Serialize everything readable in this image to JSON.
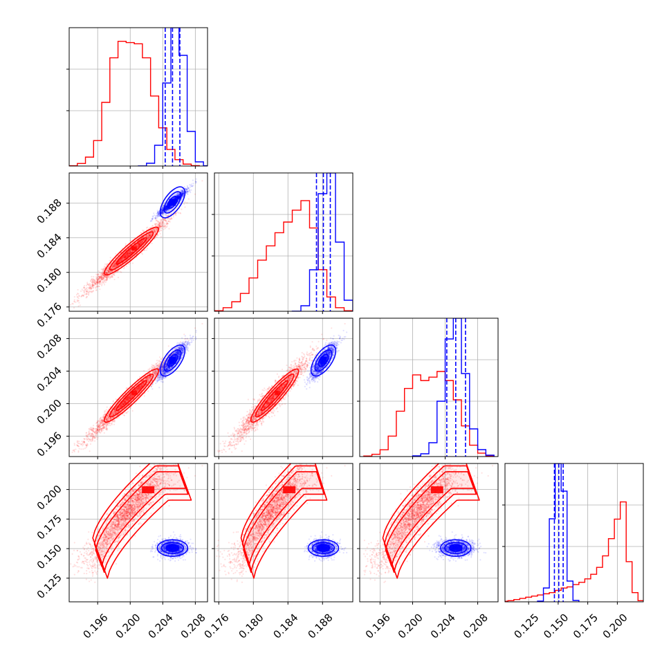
{
  "chart_data": {
    "type": "corner",
    "grid": true,
    "colors": {
      "red": "#ff0000",
      "blue": "#0000ff",
      "grid": "#b0b0b0",
      "axes": "#000000"
    },
    "parameters": [
      {
        "range": [
          0.1925,
          0.2095
        ],
        "ticks": [
          0.196,
          0.2,
          0.204,
          0.208
        ],
        "tick_labels": [
          "0.196",
          "0.200",
          "0.204",
          "0.208"
        ],
        "blue_mean": 0.2052,
        "blue_sigma": 0.0009,
        "dashed_quantiles": [
          0.2043,
          0.2052,
          0.2061
        ]
      },
      {
        "range": [
          0.1755,
          0.1915
        ],
        "ticks": [
          0.176,
          0.18,
          0.184,
          0.188
        ],
        "tick_labels": [
          "0.176",
          "0.180",
          "0.184",
          "0.188"
        ],
        "blue_mean": 0.1881,
        "blue_sigma": 0.00075,
        "dashed_quantiles": [
          0.1873,
          0.1881,
          0.1889
        ]
      },
      {
        "range": [
          0.1935,
          0.2105
        ],
        "ticks": [
          0.196,
          0.2,
          0.204,
          0.208
        ],
        "tick_labels": [
          "0.196",
          "0.200",
          "0.204",
          "0.208"
        ],
        "blue_mean": 0.2053,
        "blue_sigma": 0.0011,
        "dashed_quantiles": [
          0.2042,
          0.2053,
          0.2065
        ]
      },
      {
        "range": [
          0.105,
          0.222
        ],
        "ticks": [
          0.125,
          0.15,
          0.175,
          0.2
        ],
        "tick_labels": [
          "0.125",
          "0.150",
          "0.175",
          "0.200"
        ],
        "blue_mean": 0.1505,
        "blue_sigma": 0.0035,
        "dashed_quantiles": [
          0.1468,
          0.1505,
          0.1542
        ]
      }
    ],
    "histograms": {
      "0": {
        "red": [
          [
            0.193,
            0.002
          ],
          [
            0.194,
            0.02
          ],
          [
            0.195,
            0.07
          ],
          [
            0.196,
            0.2
          ],
          [
            0.197,
            0.5
          ],
          [
            0.198,
            0.85
          ],
          [
            0.199,
            0.98
          ],
          [
            0.2,
            0.97
          ],
          [
            0.201,
            0.96
          ],
          [
            0.202,
            0.85
          ],
          [
            0.203,
            0.55
          ],
          [
            0.204,
            0.3
          ],
          [
            0.205,
            0.13
          ],
          [
            0.206,
            0.05
          ],
          [
            0.207,
            0.015
          ],
          [
            0.208,
            0.003
          ]
        ],
        "blue": [
          [
            0.2015,
            0.001
          ],
          [
            0.2025,
            0.02
          ],
          [
            0.2035,
            0.15
          ],
          [
            0.2045,
            0.6
          ],
          [
            0.2055,
            1.0
          ],
          [
            0.2065,
            0.8
          ],
          [
            0.2075,
            0.25
          ],
          [
            0.2085,
            0.03
          ],
          [
            0.2095,
            0.002
          ]
        ]
      },
      "1": {
        "red": [
          [
            0.176,
            0.005
          ],
          [
            0.177,
            0.03
          ],
          [
            0.178,
            0.08
          ],
          [
            0.179,
            0.15
          ],
          [
            0.18,
            0.28
          ],
          [
            0.181,
            0.43
          ],
          [
            0.182,
            0.55
          ],
          [
            0.183,
            0.66
          ],
          [
            0.184,
            0.75
          ],
          [
            0.185,
            0.85
          ],
          [
            0.186,
            0.93
          ],
          [
            0.187,
            0.7
          ],
          [
            0.188,
            0.35
          ],
          [
            0.189,
            0.12
          ],
          [
            0.19,
            0.03
          ],
          [
            0.191,
            0.005
          ]
        ],
        "blue": [
          [
            0.185,
            0.001
          ],
          [
            0.186,
            0.04
          ],
          [
            0.187,
            0.3
          ],
          [
            0.188,
            0.85
          ],
          [
            0.189,
            1.0
          ],
          [
            0.19,
            0.5
          ],
          [
            0.191,
            0.08
          ],
          [
            0.192,
            0.005
          ]
        ]
      },
      "2": {
        "red": [
          [
            0.1945,
            0.005
          ],
          [
            0.1955,
            0.02
          ],
          [
            0.1965,
            0.06
          ],
          [
            0.1975,
            0.18
          ],
          [
            0.1985,
            0.4
          ],
          [
            0.1995,
            0.6
          ],
          [
            0.2005,
            0.72
          ],
          [
            0.2015,
            0.67
          ],
          [
            0.2025,
            0.7
          ],
          [
            0.2035,
            0.75
          ],
          [
            0.2045,
            0.67
          ],
          [
            0.2055,
            0.5
          ],
          [
            0.2065,
            0.27
          ],
          [
            0.2075,
            0.1
          ],
          [
            0.2085,
            0.03
          ],
          [
            0.2095,
            0.005
          ]
        ],
        "blue": [
          [
            0.2005,
            0.005
          ],
          [
            0.2015,
            0.02
          ],
          [
            0.2025,
            0.1
          ],
          [
            0.2035,
            0.4
          ],
          [
            0.2045,
            0.85
          ],
          [
            0.2055,
            1.0
          ],
          [
            0.2065,
            0.6
          ],
          [
            0.2075,
            0.2
          ],
          [
            0.2085,
            0.05
          ],
          [
            0.2095,
            0.01
          ]
        ]
      },
      "3": {
        "red": [
          [
            0.105,
            0.005
          ],
          [
            0.11,
            0.01
          ],
          [
            0.115,
            0.02
          ],
          [
            0.12,
            0.03
          ],
          [
            0.125,
            0.04
          ],
          [
            0.13,
            0.05
          ],
          [
            0.135,
            0.06
          ],
          [
            0.14,
            0.07
          ],
          [
            0.145,
            0.08
          ],
          [
            0.15,
            0.1
          ],
          [
            0.155,
            0.12
          ],
          [
            0.16,
            0.13
          ],
          [
            0.165,
            0.15
          ],
          [
            0.17,
            0.17
          ],
          [
            0.175,
            0.2
          ],
          [
            0.18,
            0.24
          ],
          [
            0.185,
            0.3
          ],
          [
            0.19,
            0.4
          ],
          [
            0.195,
            0.55
          ],
          [
            0.2,
            0.72
          ],
          [
            0.205,
            0.87
          ],
          [
            0.21,
            0.35
          ],
          [
            0.215,
            0.08
          ],
          [
            0.22,
            0.01
          ]
        ],
        "blue": [
          [
            0.135,
            0.005
          ],
          [
            0.14,
            0.1
          ],
          [
            0.145,
            0.6
          ],
          [
            0.15,
            1.0
          ],
          [
            0.155,
            0.8
          ],
          [
            0.16,
            0.15
          ],
          [
            0.165,
            0.01
          ]
        ]
      }
    }
  }
}
